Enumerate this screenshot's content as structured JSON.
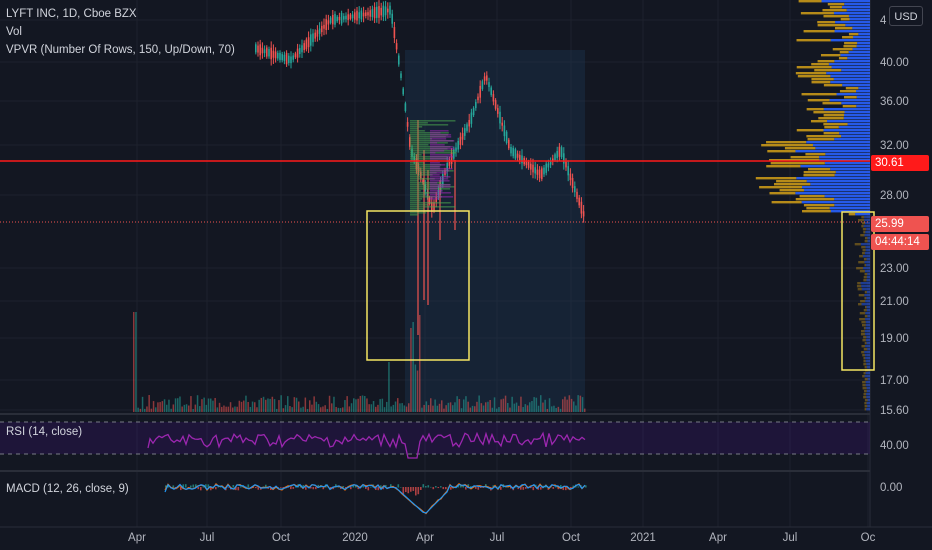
{
  "legend": {
    "symbol": "LYFT INC, 1D, Cboe BZX",
    "volume": "Vol",
    "vpvr": "VPVR (Number Of Rows, 150, Up/Down, 70)"
  },
  "currency_button": "USD",
  "price_axis": {
    "ticks": [
      "4",
      "40.00",
      "36.00",
      "32.00",
      "28.00",
      "23.00",
      "21.00",
      "19.00",
      "17.00",
      "15.60"
    ],
    "horizontal_line": {
      "label": "30.61",
      "color": "#ff1a1a"
    },
    "last_price": {
      "label": "25.99",
      "color": "#ef5350"
    },
    "countdown": {
      "label": "04:44:14",
      "color": "#ef5350"
    }
  },
  "rsi": {
    "label": "RSI (14, close)",
    "tick": "40.00",
    "color": "#9c27b0"
  },
  "macd": {
    "label": "MACD (12, 26, close, 9)",
    "tick": "0.00",
    "macd_color": "#2196f3",
    "signal_color": "#ff6d00"
  },
  "time_axis": {
    "ticks": [
      "Apr",
      "Jul",
      "Oct",
      "2020",
      "Apr",
      "Jul",
      "Oct",
      "2021",
      "Apr",
      "Jul",
      "Oc"
    ]
  },
  "colors": {
    "background": "#131722",
    "up": "#26a69a",
    "down": "#ef5350",
    "vp_up": "#2962ff",
    "vp_down": "#d4a017",
    "annotation_box": "#f5e663"
  },
  "chart_data": {
    "type": "candlestick",
    "ylim": [
      15.6,
      45.6
    ],
    "key_levels": [
      30.61,
      25.99
    ]
  }
}
